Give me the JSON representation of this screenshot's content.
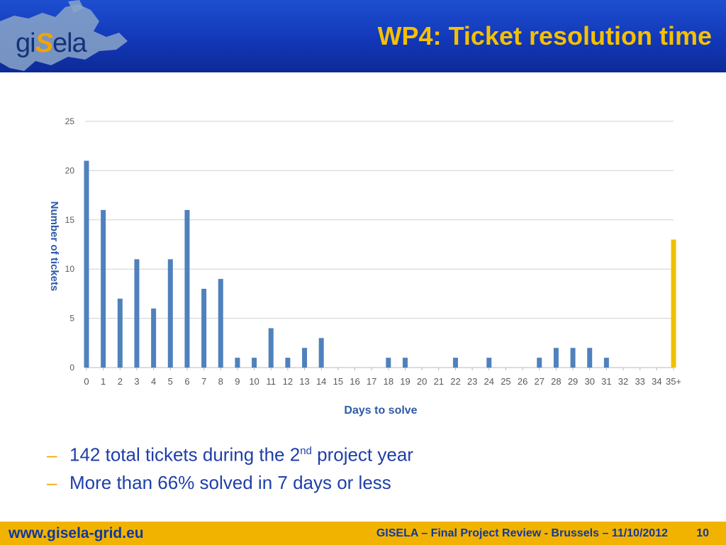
{
  "header": {
    "logo_prefix": "gi",
    "logo_s": "S",
    "logo_suffix": "ela",
    "title": "WP4: Ticket resolution time"
  },
  "chart_data": {
    "type": "bar",
    "categories": [
      "0",
      "1",
      "2",
      "3",
      "4",
      "5",
      "6",
      "7",
      "8",
      "9",
      "10",
      "11",
      "12",
      "13",
      "14",
      "15",
      "16",
      "17",
      "18",
      "19",
      "20",
      "21",
      "22",
      "23",
      "24",
      "25",
      "26",
      "27",
      "28",
      "29",
      "30",
      "31",
      "32",
      "33",
      "34",
      "35+"
    ],
    "values": [
      21,
      16,
      7,
      11,
      6,
      11,
      16,
      8,
      9,
      1,
      1,
      4,
      1,
      2,
      3,
      0,
      0,
      0,
      1,
      1,
      0,
      0,
      1,
      0,
      1,
      0,
      0,
      1,
      2,
      2,
      2,
      1,
      0,
      0,
      0,
      13
    ],
    "colors": {
      "default": "#4f81bd",
      "highlight": "#f0c000"
    },
    "highlight_category": "35+",
    "xlabel": "Days to solve",
    "ylabel": "Number of tickets",
    "ylim": [
      0,
      25
    ],
    "yticks": [
      0,
      5,
      10,
      15,
      20,
      25
    ],
    "grid": true,
    "legend": false
  },
  "bullets": [
    {
      "pre": "142 total tickets during the 2",
      "sup": "nd",
      "post": " project year"
    },
    {
      "pre": "More than 66% solved in 7 days or less",
      "sup": "",
      "post": ""
    }
  ],
  "footer": {
    "url": "www.gisela-grid.eu",
    "note": "GISELA – Final Project Review - Brussels – 11/10/2012",
    "page": "10"
  },
  "bullet_marker": "–"
}
